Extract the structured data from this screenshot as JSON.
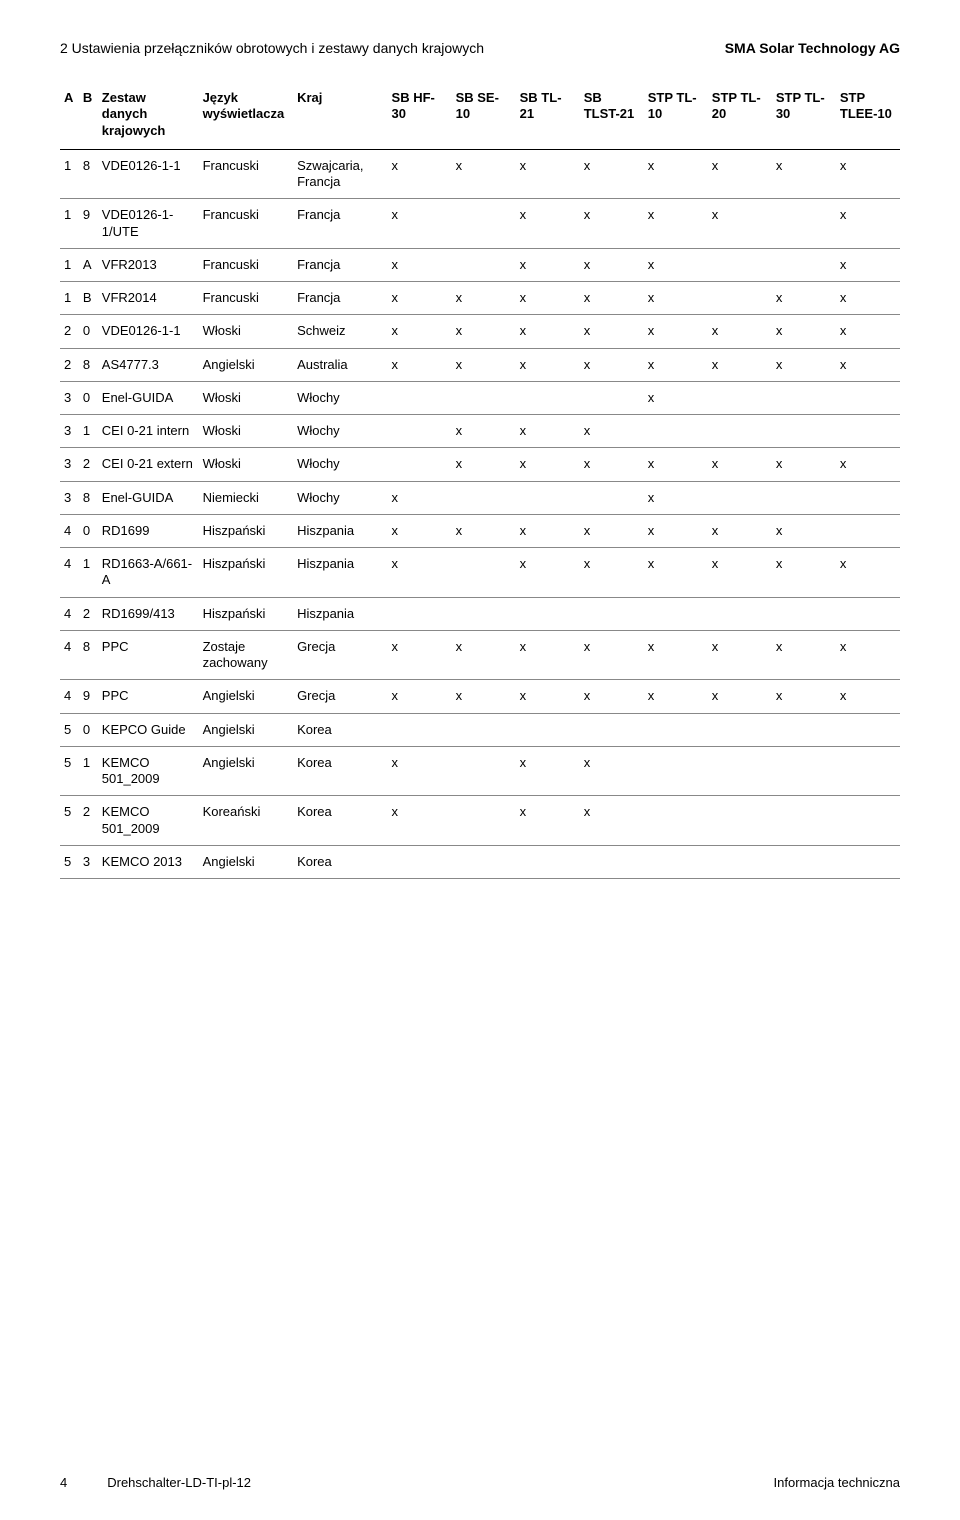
{
  "header": {
    "left": "2 Ustawienia przełączników obrotowych i zestawy danych krajowych",
    "right": "SMA Solar Technology AG"
  },
  "footer": {
    "page": "4",
    "center": "Drehschalter-LD-TI-pl-12",
    "right": "Informacja techniczna"
  },
  "columns": [
    "A",
    "B",
    "Zestaw danych krajowych",
    "Język wyświetlacza",
    "Kraj",
    "SB HF-30",
    "SB SE-10",
    "SB TL-21",
    "SB TLST-21",
    "STP TL-10",
    "STP TL-20",
    "STP TL-30",
    "STP TLEE-10"
  ],
  "rows": [
    {
      "A": "1",
      "B": "8",
      "zestaw": "VDE0126-1-1",
      "jezyk": "Francuski",
      "kraj": "Szwajcaria, Francja",
      "marks": [
        "x",
        "x",
        "x",
        "x",
        "x",
        "x",
        "x",
        "x"
      ]
    },
    {
      "A": "1",
      "B": "9",
      "zestaw": "VDE0126-1-1/UTE",
      "jezyk": "Francuski",
      "kraj": "Francja",
      "marks": [
        "x",
        "",
        "x",
        "x",
        "x",
        "x",
        "",
        "x"
      ]
    },
    {
      "A": "1",
      "B": "A",
      "zestaw": "VFR2013",
      "jezyk": "Francuski",
      "kraj": "Francja",
      "marks": [
        "x",
        "",
        "x",
        "x",
        "x",
        "",
        "",
        "x"
      ]
    },
    {
      "A": "1",
      "B": "B",
      "zestaw": "VFR2014",
      "jezyk": "Francuski",
      "kraj": "Francja",
      "marks": [
        "x",
        "x",
        "x",
        "x",
        "x",
        "",
        "x",
        "x"
      ]
    },
    {
      "A": "2",
      "B": "0",
      "zestaw": "VDE0126-1-1",
      "jezyk": "Włoski",
      "kraj": "Schweiz",
      "marks": [
        "x",
        "x",
        "x",
        "x",
        "x",
        "x",
        "x",
        "x"
      ]
    },
    {
      "A": "2",
      "B": "8",
      "zestaw": "AS4777.3",
      "jezyk": "Angielski",
      "kraj": "Australia",
      "marks": [
        "x",
        "x",
        "x",
        "x",
        "x",
        "x",
        "x",
        "x"
      ]
    },
    {
      "A": "3",
      "B": "0",
      "zestaw": "Enel-GUIDA",
      "jezyk": "Włoski",
      "kraj": "Włochy",
      "marks": [
        "",
        "",
        "",
        "",
        "x",
        "",
        "",
        ""
      ]
    },
    {
      "A": "3",
      "B": "1",
      "zestaw": "CEI 0-21 intern",
      "jezyk": "Włoski",
      "kraj": "Włochy",
      "marks": [
        "",
        "x",
        "x",
        "x",
        "",
        "",
        "",
        ""
      ]
    },
    {
      "A": "3",
      "B": "2",
      "zestaw": "CEI 0-21 extern",
      "jezyk": "Włoski",
      "kraj": "Włochy",
      "marks": [
        "",
        "x",
        "x",
        "x",
        "x",
        "x",
        "x",
        "x"
      ]
    },
    {
      "A": "3",
      "B": "8",
      "zestaw": "Enel-GUIDA",
      "jezyk": "Niemiecki",
      "kraj": "Włochy",
      "marks": [
        "x",
        "",
        "",
        "",
        "x",
        "",
        "",
        ""
      ]
    },
    {
      "A": "4",
      "B": "0",
      "zestaw": "RD1699",
      "jezyk": "Hiszpański",
      "kraj": "Hiszpania",
      "marks": [
        "x",
        "x",
        "x",
        "x",
        "x",
        "x",
        "x",
        ""
      ]
    },
    {
      "A": "4",
      "B": "1",
      "zestaw": "RD1663-A/661-A",
      "jezyk": "Hiszpański",
      "kraj": "Hiszpania",
      "marks": [
        "x",
        "",
        "x",
        "x",
        "x",
        "x",
        "x",
        "x"
      ]
    },
    {
      "A": "4",
      "B": "2",
      "zestaw": "RD1699/413",
      "jezyk": "Hiszpański",
      "kraj": "Hiszpania",
      "marks": [
        "",
        "",
        "",
        "",
        "",
        "",
        "",
        ""
      ]
    },
    {
      "A": "4",
      "B": "8",
      "zestaw": "PPC",
      "jezyk": "Zostaje zachowany",
      "kraj": "Grecja",
      "marks": [
        "x",
        "x",
        "x",
        "x",
        "x",
        "x",
        "x",
        "x"
      ]
    },
    {
      "A": "4",
      "B": "9",
      "zestaw": "PPC",
      "jezyk": "Angielski",
      "kraj": "Grecja",
      "marks": [
        "x",
        "x",
        "x",
        "x",
        "x",
        "x",
        "x",
        "x"
      ]
    },
    {
      "A": "5",
      "B": "0",
      "zestaw": "KEPCO Guide",
      "jezyk": "Angielski",
      "kraj": "Korea",
      "marks": [
        "",
        "",
        "",
        "",
        "",
        "",
        "",
        ""
      ]
    },
    {
      "A": "5",
      "B": "1",
      "zestaw": "KEMCO 501_2009",
      "jezyk": "Angielski",
      "kraj": "Korea",
      "marks": [
        "x",
        "",
        "x",
        "x",
        "",
        "",
        "",
        ""
      ]
    },
    {
      "A": "5",
      "B": "2",
      "zestaw": "KEMCO 501_2009",
      "jezyk": "Koreański",
      "kraj": "Korea",
      "marks": [
        "x",
        "",
        "x",
        "x",
        "",
        "",
        "",
        ""
      ]
    },
    {
      "A": "5",
      "B": "3",
      "zestaw": "KEMCO 2013",
      "jezyk": "Angielski",
      "kraj": "Korea",
      "marks": [
        "",
        "",
        "",
        "",
        "",
        "",
        "",
        ""
      ]
    }
  ]
}
